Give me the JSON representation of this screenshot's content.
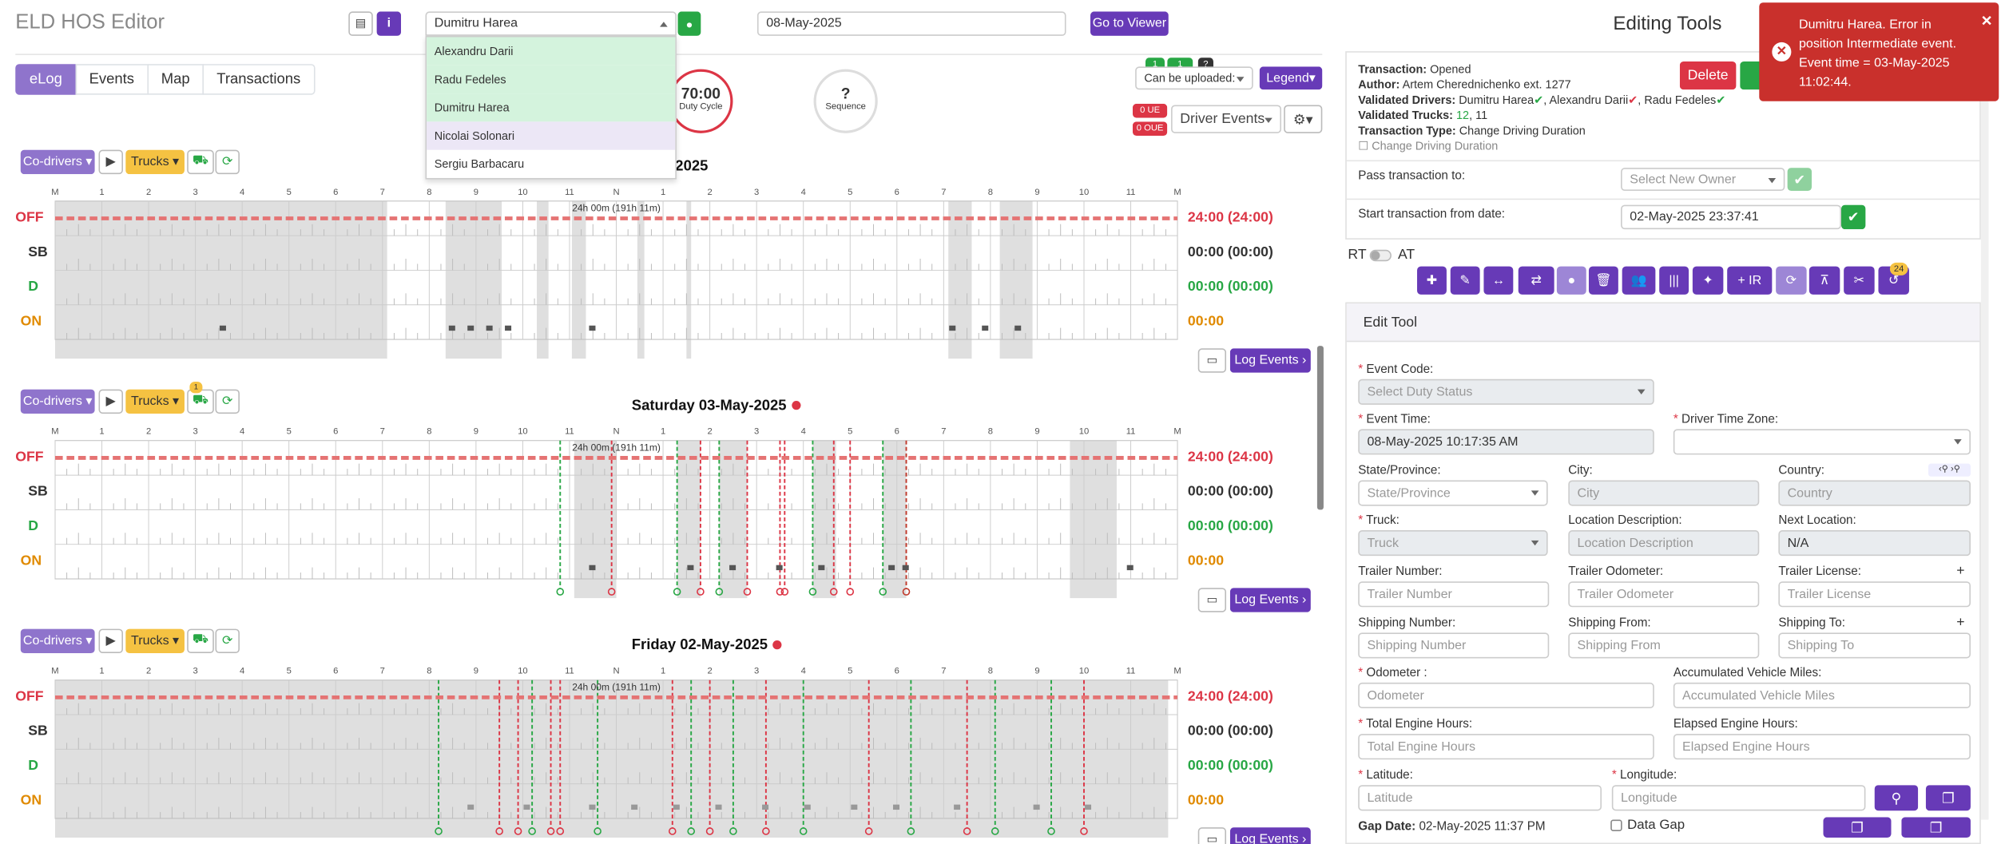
{
  "header": {
    "title": "ELD HOS Editor",
    "driver_select": "Dumitru Harea",
    "date_input": "08-May-2025",
    "viewer_button": "Go to Viewer"
  },
  "driver_dropdown": {
    "options": [
      "Alexandru Darii",
      "Radu Fedeles",
      "Dumitru Harea",
      "Nicolai Solonari",
      "Sergiu Barbacaru"
    ]
  },
  "tabs": [
    "eLog",
    "Events",
    "Map",
    "Transactions"
  ],
  "gauges": {
    "duty_value": "70:00",
    "duty_label": "Duty Cycle",
    "seq_value": "?",
    "seq_label": "Sequence"
  },
  "top_right": {
    "upload_select": "Can be uploaded:",
    "legend": "Legend",
    "ue": "0 UE",
    "oue": "0 OUE",
    "driver_events": "Driver Events",
    "badge1": "1",
    "badge2": "1",
    "badge3": "?"
  },
  "controls": {
    "codrivers": "Co-drivers",
    "trucks": "Trucks",
    "log_events": "Log Events",
    "notif": "1"
  },
  "hours": [
    "M",
    "1",
    "2",
    "3",
    "4",
    "5",
    "6",
    "7",
    "8",
    "9",
    "10",
    "11",
    "N",
    "1",
    "2",
    "3",
    "4",
    "5",
    "6",
    "7",
    "8",
    "9",
    "10",
    "11",
    "M"
  ],
  "rows": [
    "OFF",
    "SB",
    "D",
    "ON"
  ],
  "days": [
    {
      "title": "2025",
      "duration": "24h 00m (191h 11m)",
      "totals": [
        "24:00 (24:00)",
        "00:00 (00:00)",
        "00:00 (00:00)",
        "00:00"
      ]
    },
    {
      "title": "Saturday 03-May-2025",
      "duration": "24h 00m (191h 11m)",
      "totals": [
        "24:00 (24:00)",
        "00:00 (00:00)",
        "00:00 (00:00)",
        "00:00"
      ]
    },
    {
      "title": "Friday 02-May-2025",
      "duration": "24h 00m (191h 11m)",
      "totals": [
        "24:00 (24:00)",
        "00:00 (00:00)",
        "00:00 (00:00)",
        "00:00"
      ]
    }
  ],
  "editing": {
    "title": "Editing Tools",
    "transaction_label": "Transaction:",
    "transaction": "Opened",
    "author_label": "Author:",
    "author": "Artem Cherednichenko ext. 1277",
    "drivers_label": "Validated Drivers:",
    "drivers": [
      "Dumitru Harea",
      "Alexandru Darii",
      "Radu Fedeles"
    ],
    "trucks_label": "Validated Trucks:",
    "truck1": "12",
    "truck2": "11",
    "type_label": "Transaction Type:",
    "type": "Change Driving Duration",
    "type_check": "Change Driving Duration",
    "delete": "Delete",
    "pass_label": "Pass transaction to:",
    "pass_placeholder": "Select New Owner",
    "start_label": "Start transaction from date:",
    "start_value": "02-May-2025 23:37:41",
    "rt": "RT",
    "at": "AT",
    "ir": "+ IR",
    "badge": "24"
  },
  "edit_tool": {
    "title": "Edit Tool",
    "event_code": "Event Code:",
    "event_code_ph": "Select Duty Status",
    "event_time": "Event Time:",
    "event_time_val": "08-May-2025 10:17:35 AM",
    "tz": "Driver Time Zone:",
    "state": "State/Province:",
    "state_ph": "State/Province",
    "city": "City:",
    "city_ph": "City",
    "country": "Country:",
    "country_ph": "Country",
    "truck": "Truck:",
    "truck_ph": "Truck",
    "loc": "Location Description:",
    "loc_ph": "Location Description",
    "next": "Next Location:",
    "next_val": "N/A",
    "tn": "Trailer Number:",
    "tn_ph": "Trailer Number",
    "to": "Trailer Odometer:",
    "to_ph": "Trailer Odometer",
    "tl": "Trailer License:",
    "tl_ph": "Trailer License",
    "sn": "Shipping Number:",
    "sn_ph": "Shipping Number",
    "sf": "Shipping From:",
    "sf_ph": "Shipping From",
    "st": "Shipping To:",
    "st_ph": "Shipping To",
    "odo": "Odometer :",
    "odo_ph": "Odometer",
    "avm": "Accumulated Vehicle Miles:",
    "avm_ph": "Accumulated Vehicle Miles",
    "teh": "Total Engine Hours:",
    "teh_ph": "Total Engine Hours",
    "eeh": "Elapsed Engine Hours:",
    "eeh_ph": "Elapsed Engine Hours",
    "lat": "Latitude:",
    "lat_ph": "Latitude",
    "lon": "Longitude:",
    "lon_ph": "Longitude",
    "gap_label": "Gap Date:",
    "gap": "02-May-2025 11:37 PM",
    "data_gap": "Data Gap"
  },
  "toast": {
    "message": "Dumitru Harea. Error in position Intermediate event. Event time = 03-May-2025 11:02:44.",
    "color": "#c9302c"
  }
}
